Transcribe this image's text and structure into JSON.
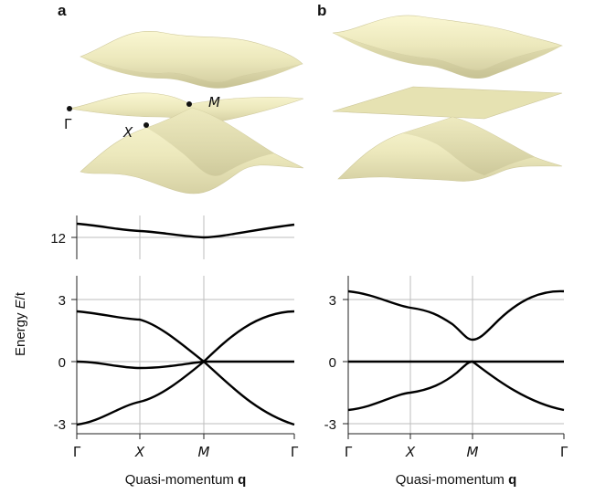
{
  "panels": {
    "a": {
      "letter": "a"
    },
    "b": {
      "letter": "b"
    }
  },
  "surface_labels": {
    "gamma": "Γ",
    "x": "X",
    "m": "M"
  },
  "ylabel_prefix": "Energy ",
  "ylabel_var": "E",
  "ylabel_suffix": "/t",
  "xlabel_text": "Quasi-momentum ",
  "xlabel_bold": "q",
  "colors": {
    "surface": "#f2efc4",
    "surface_shade": "#c9c49a",
    "band": "#000000",
    "grid": "#bdbdbd"
  },
  "chart_data": [
    {
      "type": "line",
      "panel": "a (top)",
      "x": [
        "Γ",
        "X",
        "M",
        "Γ"
      ],
      "ylim": [
        11.6,
        13.4
      ],
      "yticks": [
        12
      ],
      "series": [
        {
          "x": [
            0,
            1,
            2,
            3
          ],
          "y": [
            12.8,
            12.45,
            12.05,
            12.8
          ]
        }
      ]
    },
    {
      "type": "line",
      "panel": "a (bottom)",
      "x": [
        "Γ",
        "X",
        "M",
        "Γ"
      ],
      "ylim": [
        -3.3,
        4.2
      ],
      "yticks": [
        -3,
        0,
        3
      ],
      "series": [
        {
          "x": [
            0,
            0.5,
            1,
            1.5,
            2,
            2.5,
            3
          ],
          "y": [
            2.4,
            2.2,
            2.0,
            1.1,
            0,
            1.7,
            2.4
          ]
        },
        {
          "x": [
            0,
            0.5,
            1,
            1.5,
            2,
            2.5,
            3
          ],
          "y": [
            0,
            -0.1,
            -0.35,
            -0.2,
            0,
            0,
            0
          ]
        },
        {
          "x": [
            0,
            0.5,
            1,
            1.5,
            2,
            2.5,
            3
          ],
          "y": [
            -3.1,
            -2.7,
            -2.0,
            -1.3,
            0,
            -2.2,
            -3.1
          ]
        }
      ]
    },
    {
      "type": "line",
      "panel": "b",
      "x": [
        "Γ",
        "X",
        "M",
        "Γ"
      ],
      "ylim": [
        -3.3,
        4.2
      ],
      "yticks": [
        -3,
        0,
        3
      ],
      "series": [
        {
          "x": [
            0,
            0.5,
            1,
            1.5,
            2,
            2.5,
            3
          ],
          "y": [
            3.35,
            3.1,
            2.6,
            2.3,
            1.0,
            2.4,
            3.35
          ]
        },
        {
          "x": [
            0,
            3
          ],
          "y": [
            0,
            0
          ]
        },
        {
          "x": [
            0,
            0.5,
            1,
            1.5,
            2,
            2.5,
            3
          ],
          "y": [
            -2.4,
            -2.2,
            -1.55,
            -1.1,
            0,
            -1.6,
            -2.4
          ]
        }
      ]
    }
  ]
}
